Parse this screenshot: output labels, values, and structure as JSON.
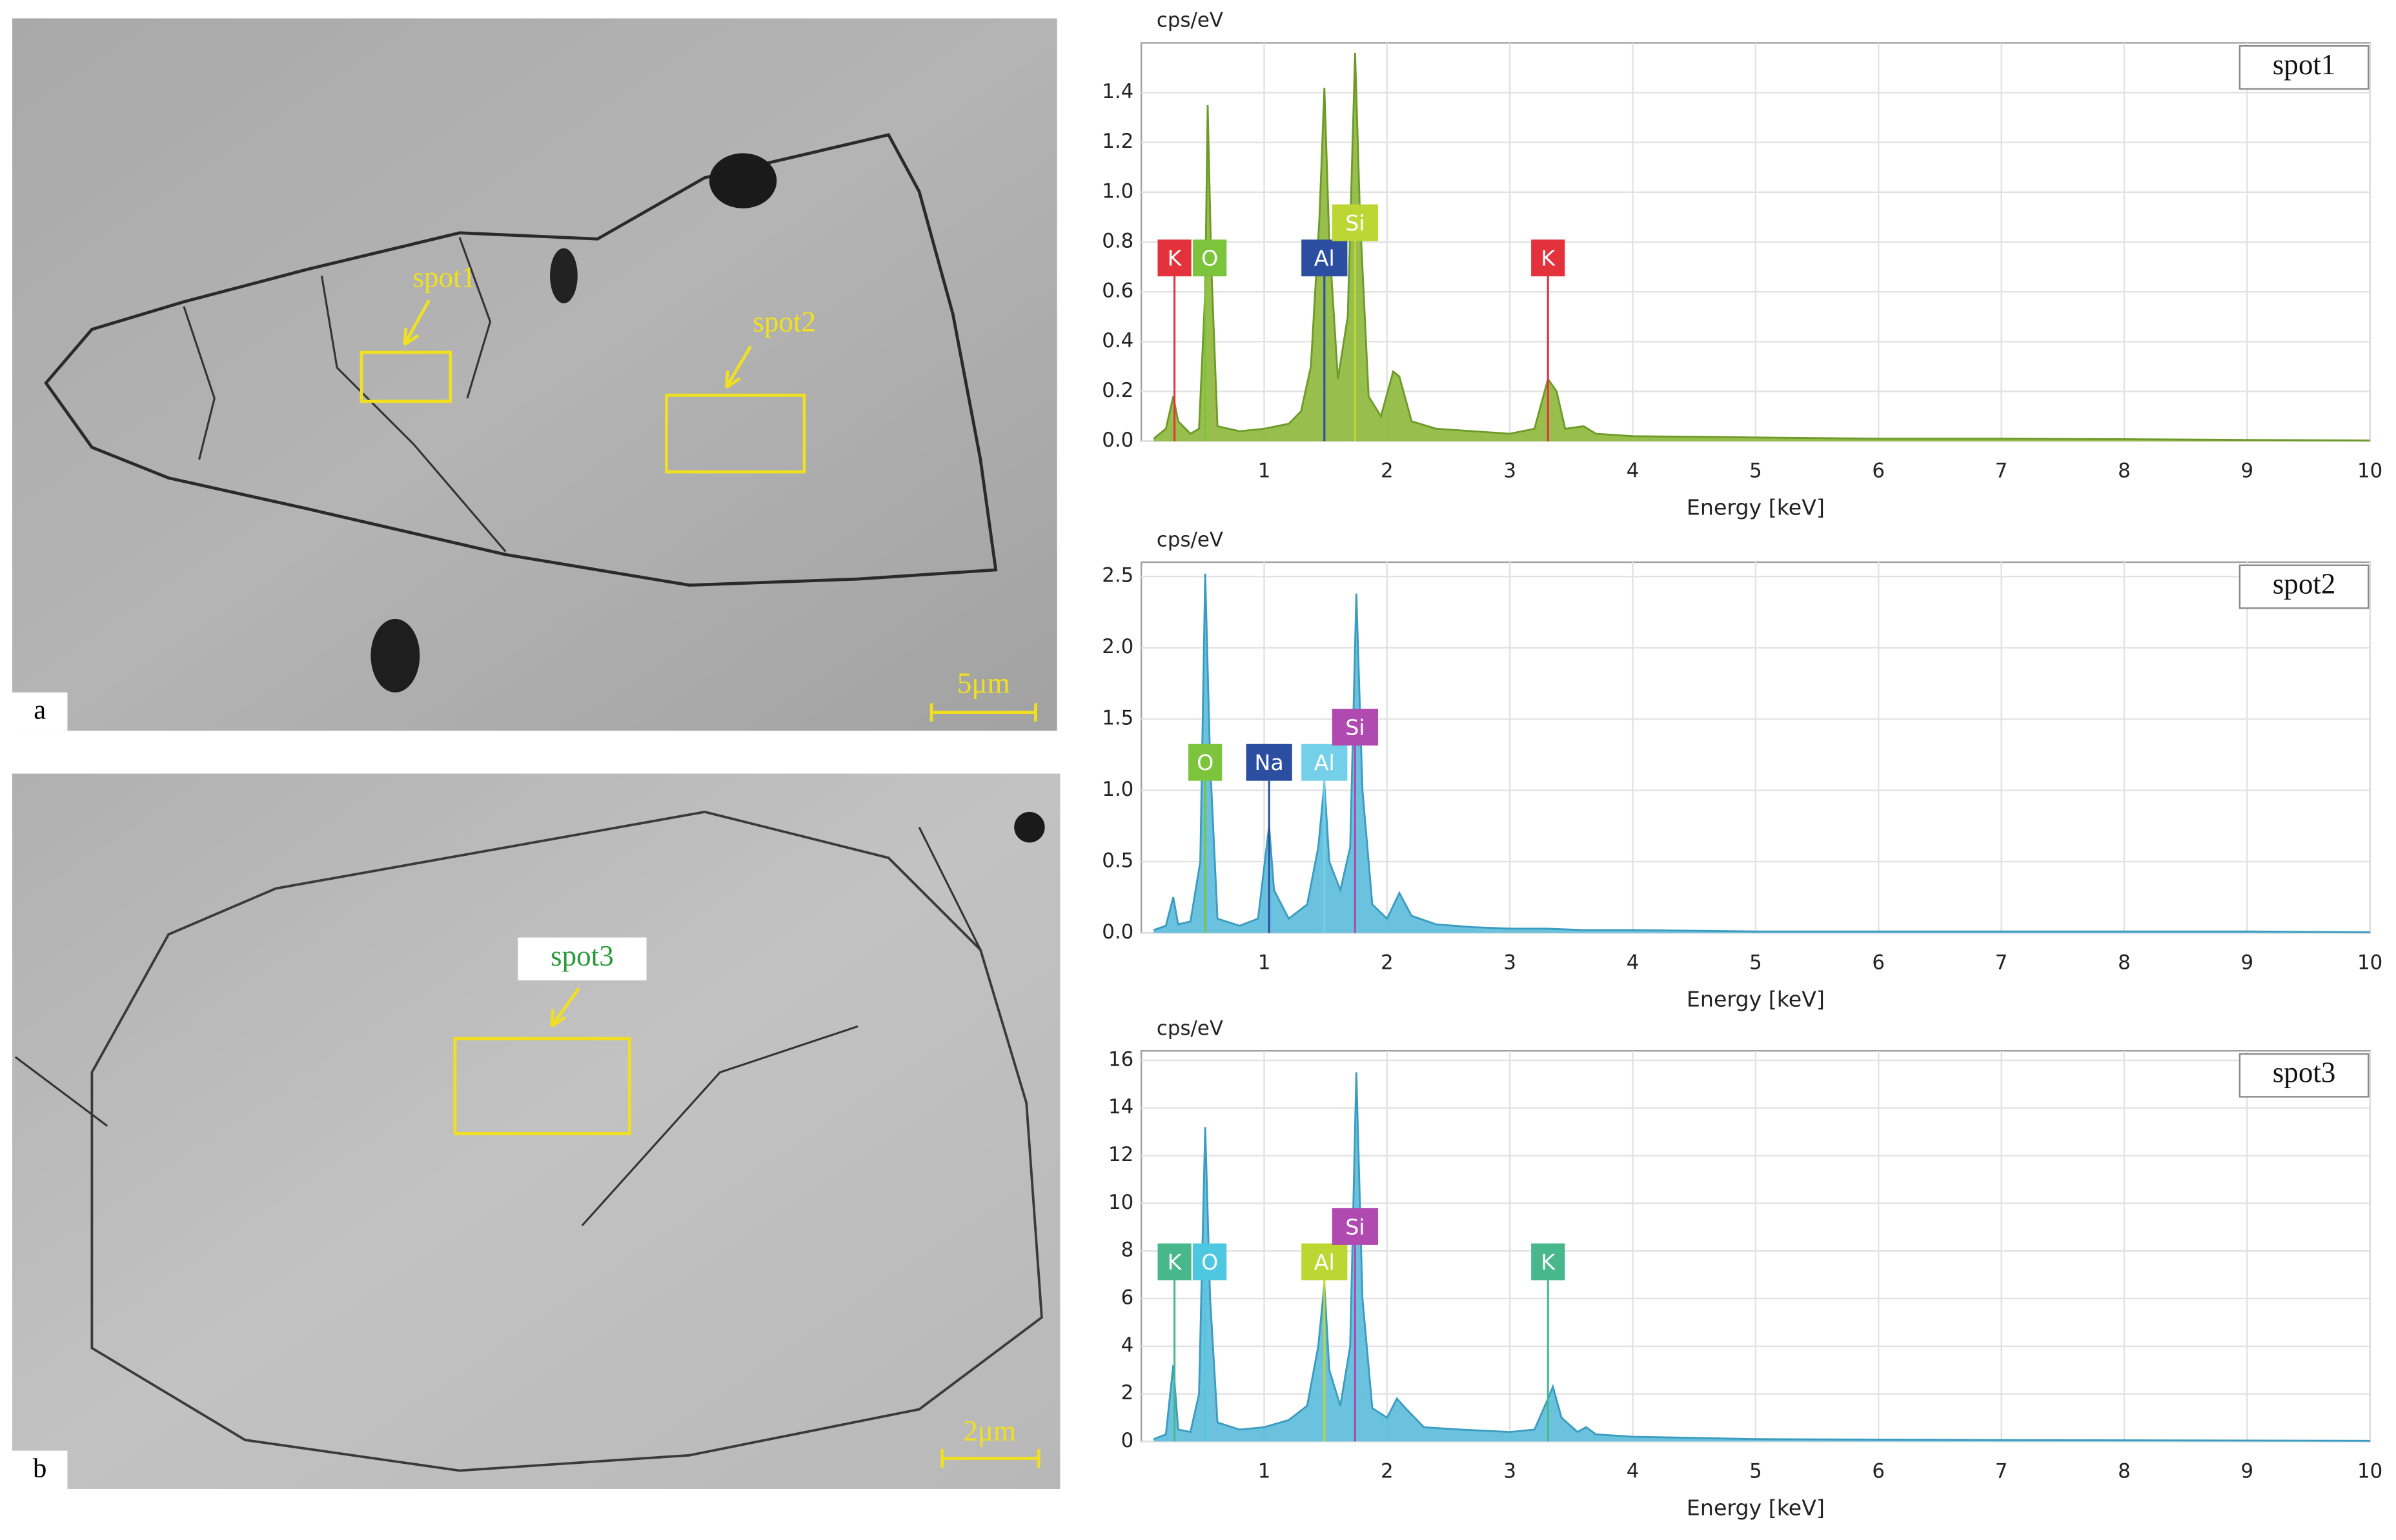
{
  "images": [
    {
      "label": "a",
      "scale_bar": "5μm",
      "spots": [
        "spot1",
        "spot2"
      ]
    },
    {
      "label": "b",
      "scale_bar": "2μm",
      "spots": [
        "spot3"
      ]
    }
  ],
  "chart_data": [
    {
      "type": "area",
      "legend": "spot1",
      "y_label": "cps/eV",
      "x_label": "Energy [keV]",
      "color": "#8db83a",
      "line_color": "#6e9a28",
      "grid": true,
      "xlim": [
        0,
        10
      ],
      "xticks": [
        1,
        2,
        3,
        4,
        5,
        6,
        7,
        8,
        9,
        10
      ],
      "ylim": [
        0,
        1.6
      ],
      "yticks": [
        {
          "value": 0,
          "label": "0.0"
        },
        0.2,
        0.4,
        0.6,
        0.8,
        {
          "value": 1,
          "label": "1.0"
        },
        1.2,
        1.4
      ],
      "x": [
        0.1,
        0.2,
        0.26,
        0.3,
        0.4,
        0.47,
        0.52,
        0.54,
        0.57,
        0.62,
        0.8,
        1.0,
        1.2,
        1.3,
        1.38,
        1.45,
        1.49,
        1.53,
        1.6,
        1.68,
        1.74,
        1.78,
        1.85,
        1.95,
        2.05,
        2.1,
        2.2,
        2.4,
        2.7,
        3.0,
        3.2,
        3.31,
        3.38,
        3.45,
        3.6,
        3.7,
        4,
        5,
        6,
        7,
        8,
        9,
        10
      ],
      "series": [
        {
          "values": [
            0.01,
            0.05,
            0.18,
            0.08,
            0.03,
            0.05,
            0.6,
            1.35,
            0.7,
            0.06,
            0.04,
            0.05,
            0.07,
            0.12,
            0.3,
            0.9,
            1.42,
            0.8,
            0.25,
            0.5,
            1.56,
            0.9,
            0.18,
            0.1,
            0.28,
            0.26,
            0.08,
            0.05,
            0.04,
            0.03,
            0.05,
            0.25,
            0.2,
            0.05,
            0.06,
            0.03,
            0.02,
            0.015,
            0.01,
            0.01,
            0.008,
            0.005,
            0.003
          ]
        }
      ],
      "annotations": [
        {
          "text": "K",
          "x": 0.27,
          "color": "#e3323c"
        },
        {
          "text": "O",
          "x": 0.52,
          "color": "#7cc43c"
        },
        {
          "text": "Al",
          "x": 1.49,
          "color": "#2c4ea0"
        },
        {
          "text": "Si",
          "x": 1.74,
          "color": "#bcd634"
        },
        {
          "text": "K",
          "x": 3.31,
          "color": "#e3323c"
        }
      ]
    },
    {
      "type": "area",
      "legend": "spot2",
      "y_label": "cps/eV",
      "x_label": "Energy [keV]",
      "color": "#5bbbdc",
      "line_color": "#3a9cc0",
      "grid": true,
      "xlim": [
        0,
        10
      ],
      "xticks": [
        1,
        2,
        3,
        4,
        5,
        6,
        7,
        8,
        9,
        10
      ],
      "ylim": [
        0,
        2.6
      ],
      "yticks": [
        {
          "value": 0,
          "label": "0.0"
        },
        0.5,
        {
          "value": 1,
          "label": "1.0"
        },
        1.5,
        {
          "value": 2,
          "label": "2.0"
        },
        2.5
      ],
      "x": [
        0.1,
        0.2,
        0.26,
        0.3,
        0.4,
        0.48,
        0.52,
        0.56,
        0.62,
        0.8,
        0.95,
        1.04,
        1.08,
        1.2,
        1.35,
        1.44,
        1.49,
        1.53,
        1.62,
        1.7,
        1.75,
        1.8,
        1.88,
        2.0,
        2.1,
        2.2,
        2.4,
        2.7,
        3.0,
        3.3,
        3.6,
        4,
        5,
        6,
        7,
        8,
        9,
        10
      ],
      "series": [
        {
          "values": [
            0.02,
            0.05,
            0.25,
            0.06,
            0.08,
            0.5,
            2.52,
            1.2,
            0.1,
            0.05,
            0.1,
            0.75,
            0.3,
            0.1,
            0.2,
            0.6,
            1.05,
            0.5,
            0.3,
            0.6,
            2.38,
            1.0,
            0.2,
            0.1,
            0.28,
            0.12,
            0.06,
            0.04,
            0.03,
            0.03,
            0.02,
            0.02,
            0.01,
            0.01,
            0.01,
            0.01,
            0.01,
            0.005
          ]
        }
      ],
      "annotations": [
        {
          "text": "O",
          "x": 0.52,
          "color": "#7cc43c"
        },
        {
          "text": "Na",
          "x": 1.04,
          "color": "#2c4ea0"
        },
        {
          "text": "Al",
          "x": 1.49,
          "color": "#74d0e8"
        },
        {
          "text": "Si",
          "x": 1.74,
          "color": "#b04ab0"
        }
      ]
    },
    {
      "type": "area",
      "legend": "spot3",
      "y_label": "cps/eV",
      "x_label": "Energy [keV]",
      "color": "#5bbbdc",
      "line_color": "#3a9cc0",
      "grid": true,
      "xlim": [
        0,
        10
      ],
      "xticks": [
        1,
        2,
        3,
        4,
        5,
        6,
        7,
        8,
        9,
        10
      ],
      "ylim": [
        0,
        16.4
      ],
      "yticks": [
        0,
        2,
        4,
        6,
        8,
        10,
        12,
        14,
        16
      ],
      "x": [
        0.1,
        0.2,
        0.26,
        0.3,
        0.4,
        0.47,
        0.52,
        0.56,
        0.62,
        0.8,
        1.0,
        1.2,
        1.35,
        1.44,
        1.49,
        1.53,
        1.62,
        1.7,
        1.75,
        1.8,
        1.88,
        2.0,
        2.08,
        2.15,
        2.3,
        2.6,
        3.0,
        3.2,
        3.31,
        3.35,
        3.42,
        3.55,
        3.62,
        3.7,
        4,
        5,
        6,
        7,
        8,
        9,
        10
      ],
      "series": [
        {
          "values": [
            0.1,
            0.3,
            3.2,
            0.5,
            0.4,
            2,
            13.2,
            6,
            0.8,
            0.5,
            0.6,
            0.9,
            1.5,
            4,
            6.6,
            3,
            1.5,
            4,
            15.5,
            6,
            1.4,
            1.0,
            1.8,
            1.4,
            0.6,
            0.5,
            0.4,
            0.5,
            1.8,
            2.3,
            1.0,
            0.4,
            0.6,
            0.3,
            0.2,
            0.1,
            0.08,
            0.06,
            0.05,
            0.04,
            0.03
          ]
        }
      ],
      "annotations": [
        {
          "text": "K",
          "x": 0.27,
          "color": "#48b88c"
        },
        {
          "text": "O",
          "x": 0.52,
          "color": "#4ec8e0"
        },
        {
          "text": "Al",
          "x": 1.49,
          "color": "#bcd634"
        },
        {
          "text": "Si",
          "x": 1.74,
          "color": "#b04ab0"
        },
        {
          "text": "K",
          "x": 3.31,
          "color": "#48b88c"
        }
      ]
    }
  ]
}
